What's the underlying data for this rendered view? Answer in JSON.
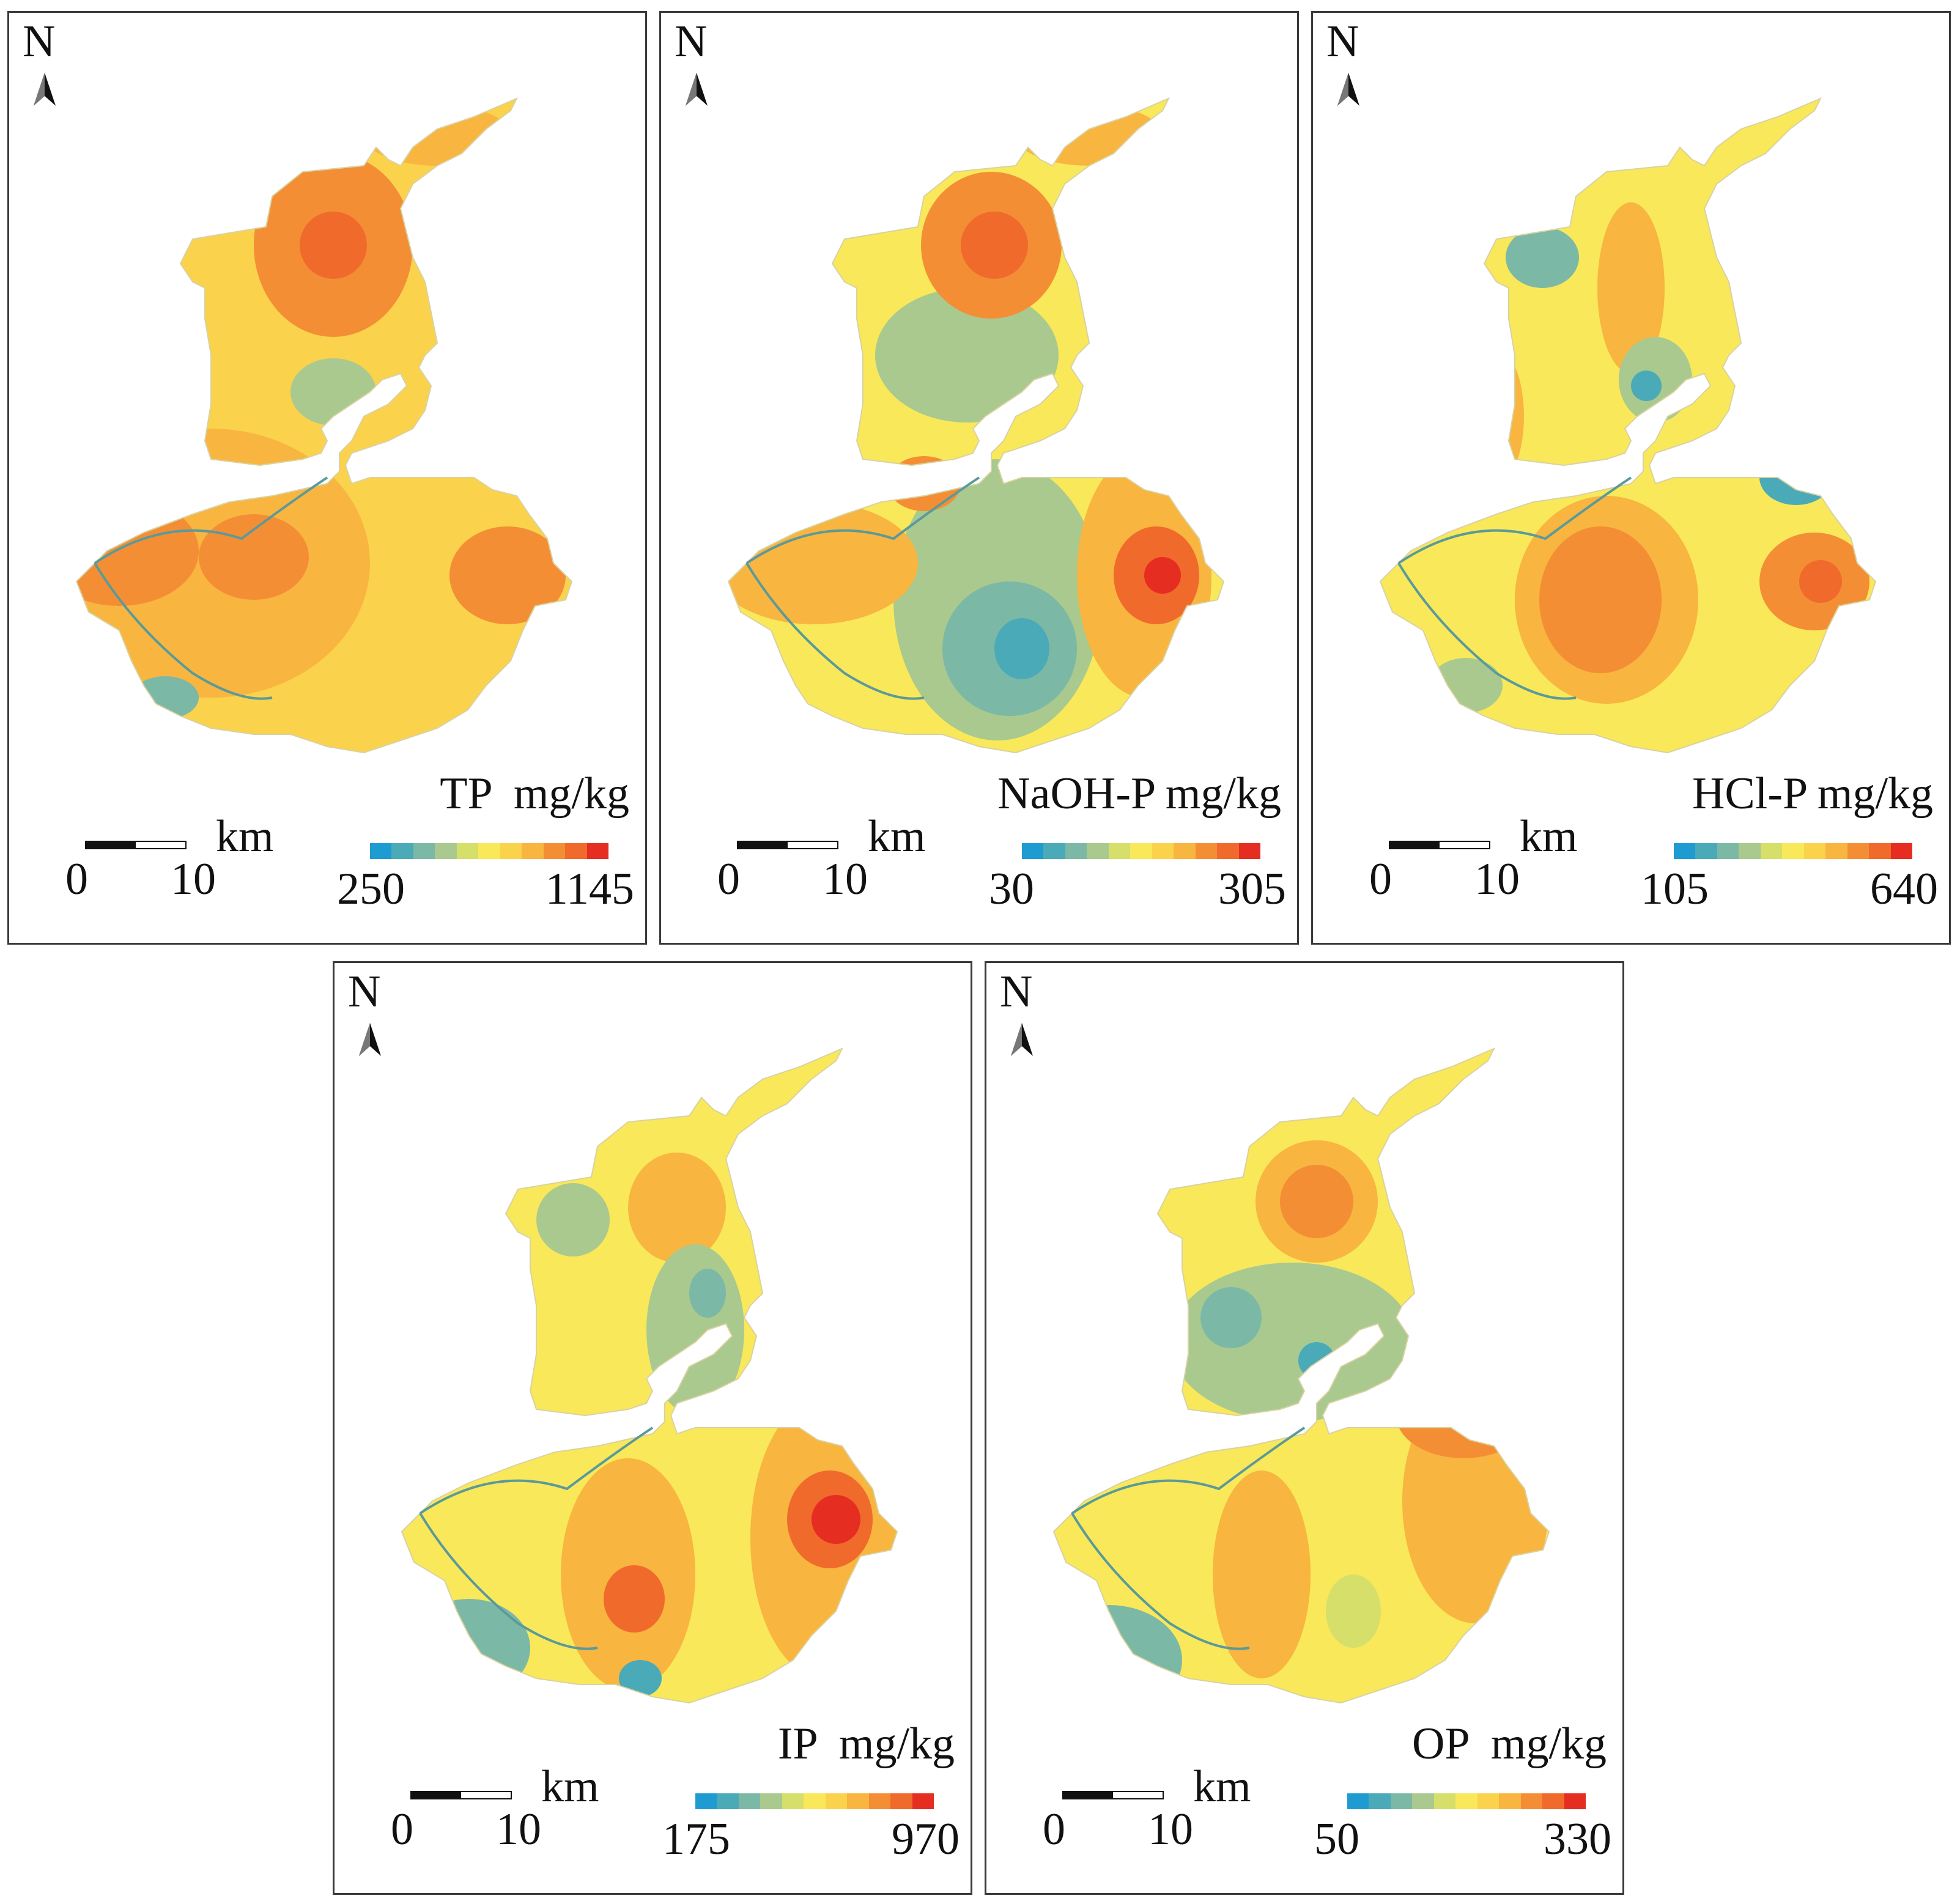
{
  "north_label": "N",
  "scale": {
    "zero": "0",
    "ten": "10",
    "unit": "km"
  },
  "palette": [
    "#1e9cd2",
    "#4aaab8",
    "#7cb8a6",
    "#a9c98f",
    "#d5df6a",
    "#f9e85a",
    "#fbd24c",
    "#f8b540",
    "#f48e35",
    "#f06a2c",
    "#e62d22"
  ],
  "panels": [
    {
      "id": "tp",
      "title": "TP  mg/kg",
      "min": "250",
      "max": "1145",
      "hotspots": [
        "north-center",
        "center-west",
        "east",
        "southwest"
      ]
    },
    {
      "id": "naoh",
      "title": "NaOH-P mg/kg",
      "min": "30",
      "max": "305",
      "hotspots": [
        "north-center",
        "east"
      ]
    },
    {
      "id": "hcl",
      "title": "HCl-P mg/kg",
      "min": "105",
      "max": "640",
      "hotspots": [
        "south-center",
        "east"
      ]
    },
    {
      "id": "ip",
      "title": "IP  mg/kg",
      "min": "175",
      "max": "970",
      "hotspots": [
        "north-center",
        "south-center",
        "east"
      ]
    },
    {
      "id": "op",
      "title": "OP  mg/kg",
      "min": "50",
      "max": "330",
      "hotspots": [
        "north-center",
        "north-east"
      ]
    }
  ]
}
